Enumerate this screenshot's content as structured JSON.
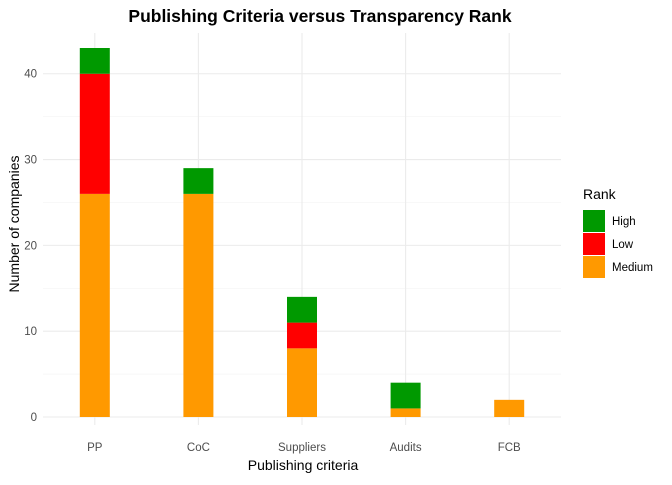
{
  "chart_data": {
    "type": "bar",
    "stacked": true,
    "title": "Publishing Criteria versus Transparency Rank",
    "xlabel": "Publishing criteria",
    "ylabel": "Number of companies",
    "categories": [
      "PP",
      "CoC",
      "Suppliers",
      "Audits",
      "FCB"
    ],
    "ylim": [
      0,
      43
    ],
    "yticks": [
      0,
      10,
      20,
      30,
      40
    ],
    "grid": true,
    "legend": {
      "title": "Rank",
      "position": "right",
      "entries": [
        "High",
        "Low",
        "Medium"
      ]
    },
    "stack_order_bottom_to_top": [
      "Medium",
      "Low",
      "High"
    ],
    "series": [
      {
        "name": "High",
        "color": "#009900",
        "values": [
          3,
          3,
          3,
          3,
          0
        ]
      },
      {
        "name": "Low",
        "color": "#ff0000",
        "values": [
          14,
          0,
          3,
          0,
          0
        ]
      },
      {
        "name": "Medium",
        "color": "#ff9900",
        "values": [
          26,
          26,
          8,
          1,
          2
        ]
      }
    ]
  }
}
